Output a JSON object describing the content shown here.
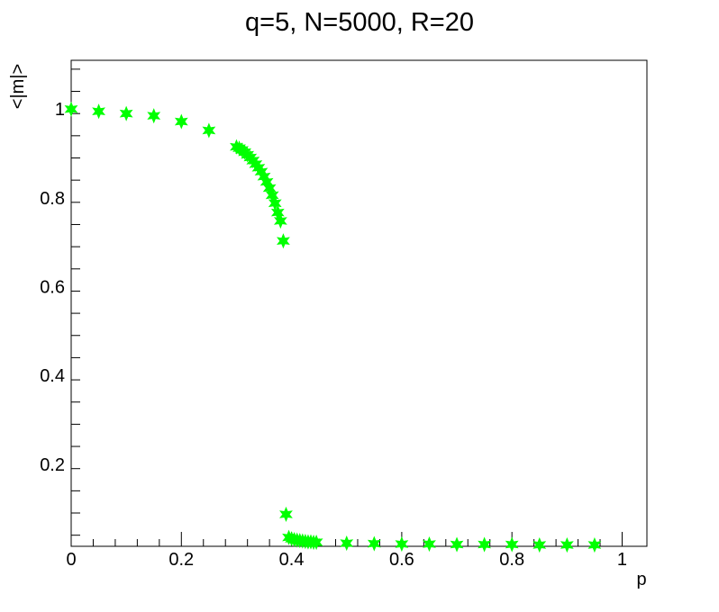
{
  "chart_data": {
    "type": "scatter",
    "title": "q=5, N=5000, R=20",
    "xlabel": "p",
    "ylabel": "<|m|>",
    "xlim": [
      0,
      1.045
    ],
    "ylim": [
      0.015,
      1.11
    ],
    "x_ticks": [
      {
        "value": 0,
        "label": "0"
      },
      {
        "value": 0.2,
        "label": "0.2"
      },
      {
        "value": 0.4,
        "label": "0.4"
      },
      {
        "value": 0.6,
        "label": "0.6"
      },
      {
        "value": 0.8,
        "label": "0.8"
      },
      {
        "value": 1,
        "label": "1"
      }
    ],
    "y_ticks": [
      {
        "value": 0.2,
        "label": "0.2"
      },
      {
        "value": 0.4,
        "label": "0.4"
      },
      {
        "value": 0.6,
        "label": "0.6"
      },
      {
        "value": 0.8,
        "label": "0.8"
      },
      {
        "value": 1,
        "label": "1"
      }
    ],
    "grid": false,
    "marker": "star",
    "marker_color": "#00ff00",
    "series": [
      {
        "points": [
          [
            0.0,
            1.0
          ],
          [
            0.05,
            0.995
          ],
          [
            0.1,
            0.99
          ],
          [
            0.15,
            0.985
          ],
          [
            0.2,
            0.972
          ],
          [
            0.25,
            0.952
          ],
          [
            0.3,
            0.915
          ],
          [
            0.305,
            0.912
          ],
          [
            0.31,
            0.908
          ],
          [
            0.315,
            0.903
          ],
          [
            0.32,
            0.897
          ],
          [
            0.325,
            0.891
          ],
          [
            0.33,
            0.884
          ],
          [
            0.335,
            0.876
          ],
          [
            0.34,
            0.868
          ],
          [
            0.345,
            0.859
          ],
          [
            0.35,
            0.848
          ],
          [
            0.355,
            0.836
          ],
          [
            0.36,
            0.822
          ],
          [
            0.365,
            0.806
          ],
          [
            0.37,
            0.788
          ],
          [
            0.375,
            0.767
          ],
          [
            0.38,
            0.748
          ],
          [
            0.385,
            0.703
          ],
          [
            0.39,
            0.087
          ],
          [
            0.395,
            0.035
          ],
          [
            0.4,
            0.032
          ],
          [
            0.405,
            0.03
          ],
          [
            0.41,
            0.029
          ],
          [
            0.415,
            0.028
          ],
          [
            0.42,
            0.027
          ],
          [
            0.425,
            0.026
          ],
          [
            0.43,
            0.025
          ],
          [
            0.435,
            0.025
          ],
          [
            0.44,
            0.024
          ],
          [
            0.445,
            0.024
          ],
          [
            0.5,
            0.022
          ],
          [
            0.55,
            0.021
          ],
          [
            0.6,
            0.02
          ],
          [
            0.65,
            0.02
          ],
          [
            0.7,
            0.019
          ],
          [
            0.75,
            0.019
          ],
          [
            0.8,
            0.019
          ],
          [
            0.85,
            0.018
          ],
          [
            0.9,
            0.018
          ],
          [
            0.95,
            0.018
          ]
        ]
      }
    ]
  }
}
